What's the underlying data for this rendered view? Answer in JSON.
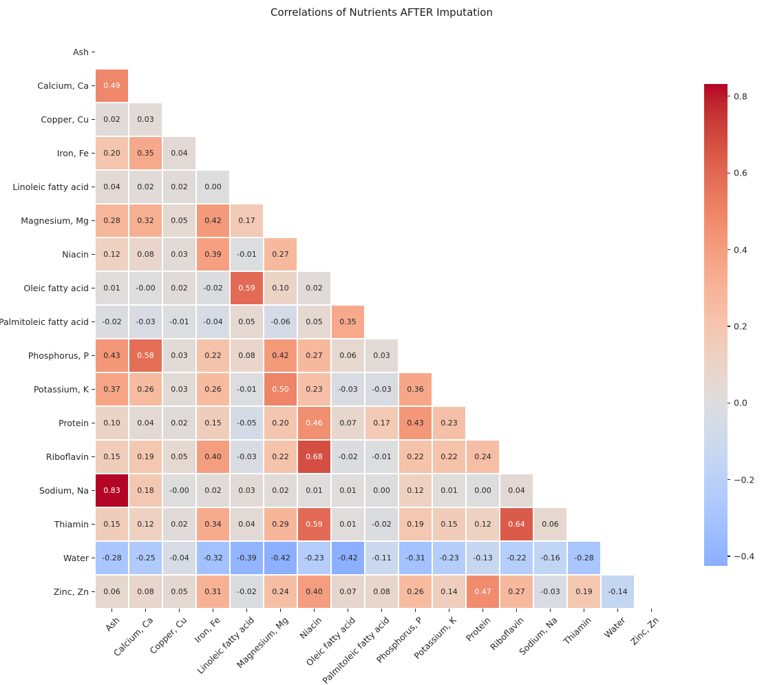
{
  "title": "Correlations of Nutrients AFTER Imputation",
  "chart_data": {
    "type": "heatmap",
    "title": "Correlations of Nutrients AFTER Imputation",
    "colormap": "coolwarm",
    "mask": "upper-triangle-including-diagonal",
    "annotation_format": ".2f",
    "labels": [
      "Ash",
      "Calcium, Ca",
      "Copper, Cu",
      "Iron, Fe",
      "Linoleic fatty acid",
      "Magnesium, Mg",
      "Niacin",
      "Oleic fatty acid",
      "Palmitoleic fatty acid",
      "Phosphorus, P",
      "Potassium, K",
      "Protein",
      "Riboflavin",
      "Sodium, Na",
      "Thiamin",
      "Water",
      "Zinc, Zn"
    ],
    "matrix": [
      [],
      [
        "0.49"
      ],
      [
        "0.02",
        "0.03"
      ],
      [
        "0.20",
        "0.35",
        "0.04"
      ],
      [
        "0.04",
        "0.02",
        "0.02",
        "0.00"
      ],
      [
        "0.28",
        "0.32",
        "0.05",
        "0.42",
        "0.17"
      ],
      [
        "0.12",
        "0.08",
        "0.03",
        "0.39",
        "-0.01",
        "0.27"
      ],
      [
        "0.01",
        "-0.00",
        "0.02",
        "-0.02",
        "0.59",
        "0.10",
        "0.02"
      ],
      [
        "-0.02",
        "-0.03",
        "-0.01",
        "-0.04",
        "0.05",
        "-0.06",
        "0.05",
        "0.35"
      ],
      [
        "0.43",
        "0.58",
        "0.03",
        "0.22",
        "0.08",
        "0.42",
        "0.27",
        "0.06",
        "0.03"
      ],
      [
        "0.37",
        "0.26",
        "0.03",
        "0.26",
        "-0.01",
        "0.50",
        "0.23",
        "-0.03",
        "-0.03",
        "0.36"
      ],
      [
        "0.10",
        "0.04",
        "0.02",
        "0.15",
        "-0.05",
        "0.20",
        "0.46",
        "0.07",
        "0.17",
        "0.43",
        "0.23"
      ],
      [
        "0.15",
        "0.19",
        "0.05",
        "0.40",
        "-0.03",
        "0.22",
        "0.68",
        "-0.02",
        "-0.01",
        "0.22",
        "0.22",
        "0.24"
      ],
      [
        "0.83",
        "0.18",
        "-0.00",
        "0.02",
        "0.03",
        "0.02",
        "0.01",
        "0.01",
        "0.00",
        "0.12",
        "0.01",
        "0.00",
        "0.04"
      ],
      [
        "0.15",
        "0.12",
        "0.02",
        "0.34",
        "0.04",
        "0.29",
        "0.59",
        "0.01",
        "-0.02",
        "0.19",
        "0.15",
        "0.12",
        "0.64",
        "0.06"
      ],
      [
        "-0.28",
        "-0.25",
        "-0.04",
        "-0.32",
        "-0.39",
        "-0.42",
        "-0.23",
        "-0.42",
        "-0.11",
        "-0.31",
        "-0.23",
        "-0.13",
        "-0.22",
        "-0.16",
        "-0.28"
      ],
      [
        "0.06",
        "0.08",
        "0.05",
        "0.31",
        "-0.02",
        "0.24",
        "0.40",
        "0.07",
        "0.08",
        "0.26",
        "0.14",
        "0.47",
        "0.27",
        "-0.03",
        "0.19",
        "-0.14"
      ]
    ],
    "color_norm": {
      "vmin": -0.832,
      "vmax": 0.832,
      "center": 0
    },
    "colorbar": {
      "min": -0.425,
      "max": 0.832,
      "ticks": [
        {
          "label": "0.8",
          "value": 0.8
        },
        {
          "label": "0.6",
          "value": 0.6
        },
        {
          "label": "0.4",
          "value": 0.4
        },
        {
          "label": "0.2",
          "value": 0.2
        },
        {
          "label": "0.0",
          "value": 0.0
        },
        {
          "label": "−0.2",
          "value": -0.2
        },
        {
          "label": "−0.4",
          "value": -0.4
        }
      ]
    },
    "text_colors": {
      "dark": "#262626",
      "light": "#ffffff"
    },
    "cell_gap_color": "#ffffff",
    "grid_on": false,
    "legend_position": "right-colorbar"
  }
}
